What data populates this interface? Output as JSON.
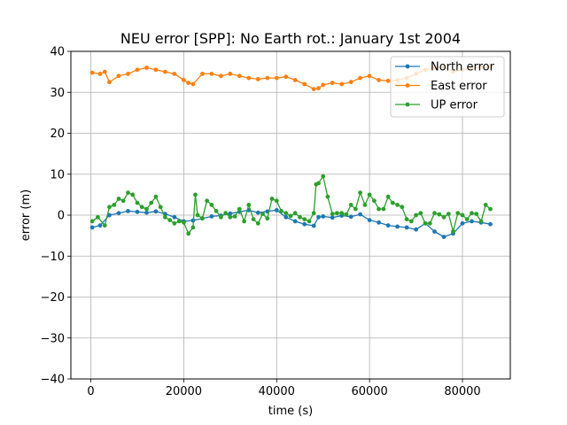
{
  "chart_data": {
    "type": "line",
    "title": "NEU error [SPP]: No Earth rot.: January 1st 2004",
    "xlabel": "time (s)",
    "ylabel": "error (m)",
    "xlim": [
      -4300,
      90300
    ],
    "ylim": [
      -40,
      40
    ],
    "xticks": [
      0,
      20000,
      40000,
      60000,
      80000
    ],
    "xtick_labels": [
      "0",
      "20000",
      "40000",
      "60000",
      "80000"
    ],
    "yticks": [
      -40,
      -30,
      -20,
      -10,
      0,
      10,
      20,
      30,
      40
    ],
    "ytick_labels": [
      "−40",
      "−30",
      "−20",
      "−10",
      "0",
      "10",
      "20",
      "30",
      "40"
    ],
    "grid": true,
    "legend_position": "top-right",
    "series": [
      {
        "name": "North error",
        "color": "#1f77b4",
        "x": [
          300,
          2000,
          4000,
          6000,
          8000,
          10000,
          12000,
          14000,
          16000,
          18000,
          20000,
          22000,
          24000,
          26000,
          28000,
          30000,
          32000,
          34000,
          36000,
          38000,
          40000,
          42000,
          44000,
          46000,
          48000,
          49000,
          50000,
          52000,
          54000,
          56000,
          58000,
          60000,
          62000,
          64000,
          66000,
          68000,
          70000,
          72000,
          74000,
          76000,
          78000,
          80000,
          82000,
          84000,
          86000
        ],
        "y": [
          -3,
          -2.5,
          0,
          0.5,
          1,
          0.8,
          0.6,
          0.9,
          0.3,
          -0.5,
          -1.5,
          -1.3,
          -0.8,
          -0.3,
          -0.1,
          0.4,
          0.8,
          1.2,
          0.6,
          0.9,
          1.2,
          -0.5,
          -1.5,
          -2.2,
          -2.6,
          -0.5,
          -0.3,
          -0.6,
          -0.1,
          -0.4,
          0.2,
          -1.2,
          -1.8,
          -2.5,
          -2.8,
          -3,
          -3.5,
          -2,
          -4,
          -5.3,
          -4.5,
          -2,
          -1.5,
          -1.8,
          -2.2
        ]
      },
      {
        "name": "East error",
        "color": "#ff7f0e",
        "x": [
          300,
          2000,
          3000,
          4000,
          6000,
          8000,
          10000,
          12000,
          14000,
          16000,
          18000,
          20000,
          21000,
          22000,
          24000,
          26000,
          28000,
          30000,
          32000,
          34000,
          36000,
          38000,
          40000,
          42000,
          44000,
          46000,
          48000,
          49000,
          50000,
          52000,
          54000,
          56000,
          58000,
          60000,
          62000,
          64000,
          66000,
          68000,
          70000,
          72000,
          74000,
          76000,
          78000,
          80000,
          82000,
          84000,
          86000
        ],
        "y": [
          34.8,
          34.5,
          35,
          32.5,
          34,
          34.5,
          35.5,
          36,
          35.5,
          35,
          34.5,
          33,
          32.3,
          32,
          34.5,
          34.5,
          34,
          34.5,
          34,
          33.5,
          33.2,
          33.5,
          33.5,
          33.8,
          33,
          32,
          30.8,
          31,
          31.8,
          32.3,
          32,
          32.5,
          33.5,
          34,
          33,
          32.8,
          33,
          33.5,
          34.5,
          35.5,
          36,
          36.2,
          35,
          35.5,
          35.8,
          36.1,
          36.2
        ]
      },
      {
        "name": "UP error",
        "color": "#2ca02c",
        "x": [
          300,
          1500,
          3000,
          4000,
          5000,
          6000,
          7000,
          8000,
          9000,
          10000,
          11000,
          12000,
          13000,
          14000,
          15000,
          16000,
          17000,
          18000,
          19000,
          20000,
          21000,
          22000,
          22500,
          23000,
          24000,
          25000,
          26000,
          27000,
          28000,
          29000,
          30000,
          31000,
          32000,
          33000,
          34000,
          35000,
          36000,
          37000,
          38000,
          39000,
          40000,
          41000,
          42000,
          43000,
          44000,
          45000,
          46000,
          47000,
          48000,
          48500,
          49000,
          50000,
          51000,
          52000,
          53000,
          54000,
          55000,
          56000,
          57000,
          58000,
          59000,
          60000,
          61000,
          62000,
          63000,
          64000,
          65000,
          66000,
          67000,
          68000,
          69000,
          70000,
          71000,
          72000,
          73000,
          74000,
          75000,
          76000,
          77000,
          78000,
          79000,
          80000,
          81000,
          82000,
          83000,
          84000,
          85000,
          86000
        ],
        "y": [
          -1.5,
          -0.5,
          -2.5,
          2,
          2.5,
          4,
          3.5,
          5.5,
          5,
          3,
          2,
          1.5,
          3,
          4.5,
          2,
          -0.5,
          -1.2,
          -2,
          -1.5,
          -1.8,
          -4.5,
          -3,
          5,
          0,
          -0.8,
          3.5,
          2.5,
          1,
          -0.5,
          0.5,
          -0.5,
          -0.3,
          1.5,
          -1.5,
          2.5,
          -1,
          -2,
          0.3,
          -0.8,
          4,
          3.5,
          1,
          0.5,
          -0.2,
          0.5,
          -0.5,
          -1,
          -1.5,
          0.5,
          7.5,
          7.8,
          9.5,
          4.5,
          0.3,
          0.5,
          0.5,
          0.2,
          2.5,
          1.5,
          5.5,
          2.5,
          5,
          3.5,
          1.5,
          1.5,
          4.5,
          3,
          2.5,
          2,
          -1,
          -1.5,
          0,
          0.5,
          -2,
          -2,
          0.5,
          0.2,
          -0.5,
          0.3,
          -4,
          0.5,
          0,
          -1,
          0.5,
          0.3,
          -1.5,
          2.5,
          1.5
        ]
      }
    ]
  }
}
